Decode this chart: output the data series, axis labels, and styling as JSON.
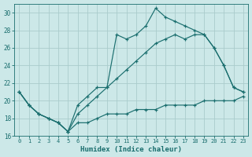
{
  "xlabel": "Humidex (Indice chaleur)",
  "background_color": "#cce8e8",
  "grid_color": "#aacccc",
  "line_color": "#1a6e6e",
  "xlim": [
    0,
    23
  ],
  "ylim": [
    16,
    31
  ],
  "xticks": [
    0,
    1,
    2,
    3,
    4,
    5,
    6,
    7,
    8,
    9,
    10,
    11,
    12,
    13,
    14,
    15,
    16,
    17,
    18,
    19,
    20,
    21,
    22,
    23
  ],
  "yticks": [
    16,
    18,
    20,
    22,
    24,
    26,
    28,
    30
  ],
  "line1_x": [
    0,
    1,
    2,
    3,
    4,
    5,
    6,
    7,
    8,
    9,
    10,
    11,
    12,
    13,
    14,
    15,
    16,
    17,
    18,
    19,
    20,
    21,
    22,
    23
  ],
  "line1_y": [
    21.0,
    19.5,
    18.5,
    18.0,
    17.5,
    16.5,
    17.5,
    17.5,
    18.0,
    18.5,
    18.5,
    18.5,
    19.0,
    19.0,
    19.0,
    19.5,
    19.5,
    19.5,
    19.5,
    20.0,
    20.0,
    20.0,
    20.0,
    20.5
  ],
  "line2_x": [
    0,
    1,
    2,
    3,
    4,
    5,
    6,
    7,
    8,
    9,
    10,
    11,
    12,
    13,
    14,
    15,
    16,
    17,
    18,
    19,
    20,
    21,
    22,
    23
  ],
  "line2_y": [
    21.0,
    19.5,
    18.5,
    18.0,
    17.5,
    16.5,
    19.5,
    20.5,
    21.5,
    21.5,
    27.5,
    27.0,
    27.5,
    28.5,
    30.5,
    29.5,
    29.0,
    28.5,
    28.0,
    27.5,
    26.0,
    24.0,
    21.5,
    21.0
  ],
  "line3_x": [
    0,
    1,
    2,
    3,
    4,
    5,
    6,
    7,
    8,
    9,
    10,
    11,
    12,
    13,
    14,
    15,
    16,
    17,
    18,
    19,
    20,
    21,
    22,
    23
  ],
  "line3_y": [
    21.0,
    19.5,
    18.5,
    18.0,
    17.5,
    16.5,
    18.5,
    19.5,
    20.5,
    21.5,
    22.5,
    23.5,
    24.5,
    25.5,
    26.5,
    27.0,
    27.5,
    27.0,
    27.5,
    27.5,
    26.0,
    24.0,
    21.5,
    21.0
  ]
}
